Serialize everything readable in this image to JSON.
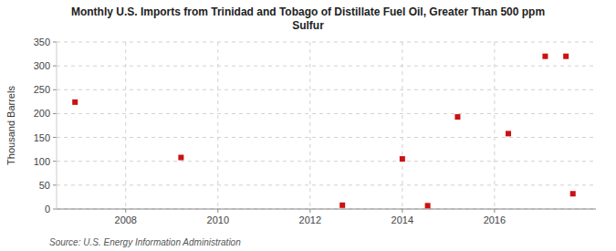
{
  "chart_data": {
    "type": "scatter",
    "title": "Monthly U.S. Imports from Trinidad and Tobago of Distillate Fuel Oil, Greater Than 500 ppm\nSulfur",
    "y_label": "Thousand Barrels",
    "source": "Source: U.S. Energy Information Administration",
    "x": [
      2006.9,
      2009.2,
      2012.7,
      2014.0,
      2014.55,
      2015.2,
      2016.3,
      2017.1,
      2017.55,
      2017.7
    ],
    "values": [
      224,
      108,
      8,
      105,
      7,
      193,
      158,
      320,
      320,
      32
    ],
    "color": "#cc1111",
    "marker": "square",
    "xlim": [
      2006.5,
      2018.2
    ],
    "ylim": [
      0,
      350
    ],
    "xticks": [
      2008,
      2010,
      2012,
      2014,
      2016
    ],
    "yticks": [
      0,
      50,
      100,
      150,
      200,
      250,
      300,
      350
    ],
    "grid": true
  }
}
